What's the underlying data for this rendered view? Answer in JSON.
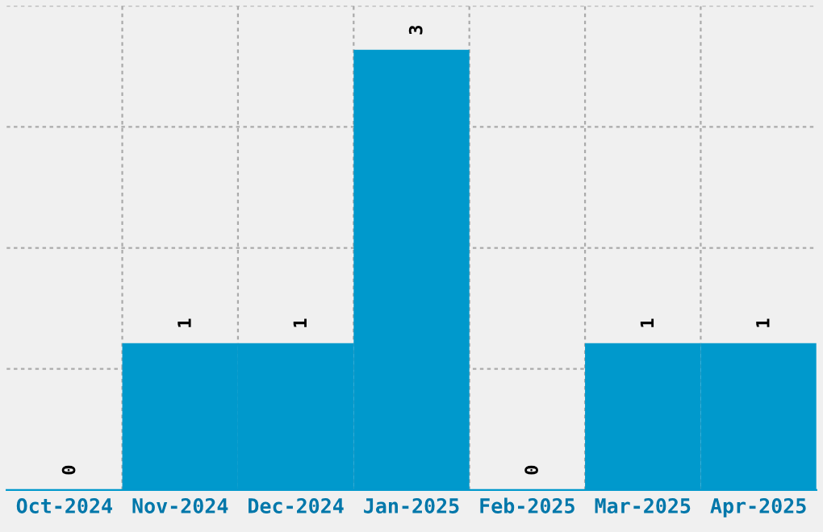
{
  "chart_data": {
    "type": "bar",
    "categories": [
      "Oct-2024",
      "Nov-2024",
      "Dec-2024",
      "Jan-2025",
      "Feb-2025",
      "Mar-2025",
      "Apr-2025"
    ],
    "values": [
      0,
      1,
      1,
      3,
      0,
      1,
      1
    ],
    "color": "#0099cc",
    "ylim": [
      0,
      3.3
    ],
    "yticks": [
      {
        "value": 0.825,
        "label": null
      },
      {
        "value": 1.65,
        "label": null
      },
      {
        "value": 2.475,
        "label": null
      },
      {
        "value": 3.3,
        "label": null
      }
    ],
    "tick_labels": "x",
    "grid": true,
    "data_labels": true
  }
}
